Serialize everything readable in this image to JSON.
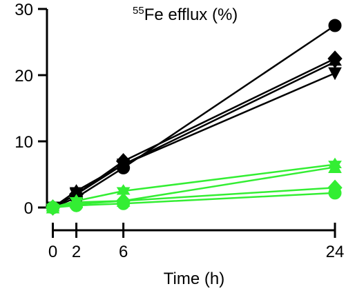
{
  "chart_data": {
    "type": "line",
    "title": {
      "superscript": "55",
      "text": "Fe efflux (%)"
    },
    "xlabel": "Time (h)",
    "ylabel": "",
    "xlim": [
      -0.5,
      24
    ],
    "ylim": [
      0,
      30
    ],
    "xticks": [
      0,
      2,
      6,
      24
    ],
    "yticks": [
      0,
      10,
      20,
      30
    ],
    "grid": false,
    "legend": "none",
    "series": [
      {
        "marker": "circle",
        "color": "#000000",
        "x": [
          0,
          2,
          6,
          24
        ],
        "y": [
          0,
          1.5,
          6.0,
          27.5
        ]
      },
      {
        "marker": "diamond",
        "color": "#000000",
        "x": [
          0,
          2,
          6,
          24
        ],
        "y": [
          0,
          2.0,
          7.0,
          22.5
        ]
      },
      {
        "marker": "star",
        "color": "#000000",
        "x": [
          0,
          2,
          6,
          24
        ],
        "y": [
          0,
          2.5,
          6.5,
          22.0
        ]
      },
      {
        "marker": "triangle-down",
        "color": "#000000",
        "x": [
          0,
          2,
          6,
          24
        ],
        "y": [
          0,
          2.0,
          6.5,
          20.3
        ]
      },
      {
        "marker": "star",
        "color": "#33ee33",
        "x": [
          0,
          2,
          6,
          24
        ],
        "y": [
          0,
          1.0,
          2.5,
          6.5
        ]
      },
      {
        "marker": "triangle-up",
        "color": "#33ee33",
        "x": [
          0,
          2,
          6,
          24
        ],
        "y": [
          0,
          0.8,
          1.0,
          6.1
        ]
      },
      {
        "marker": "diamond",
        "color": "#33ee33",
        "x": [
          0,
          2,
          6,
          24
        ],
        "y": [
          0,
          0.5,
          1.0,
          3.0
        ]
      },
      {
        "marker": "circle",
        "color": "#33ee33",
        "x": [
          0,
          2,
          6,
          24
        ],
        "y": [
          0,
          0.3,
          0.6,
          2.2
        ]
      }
    ]
  }
}
